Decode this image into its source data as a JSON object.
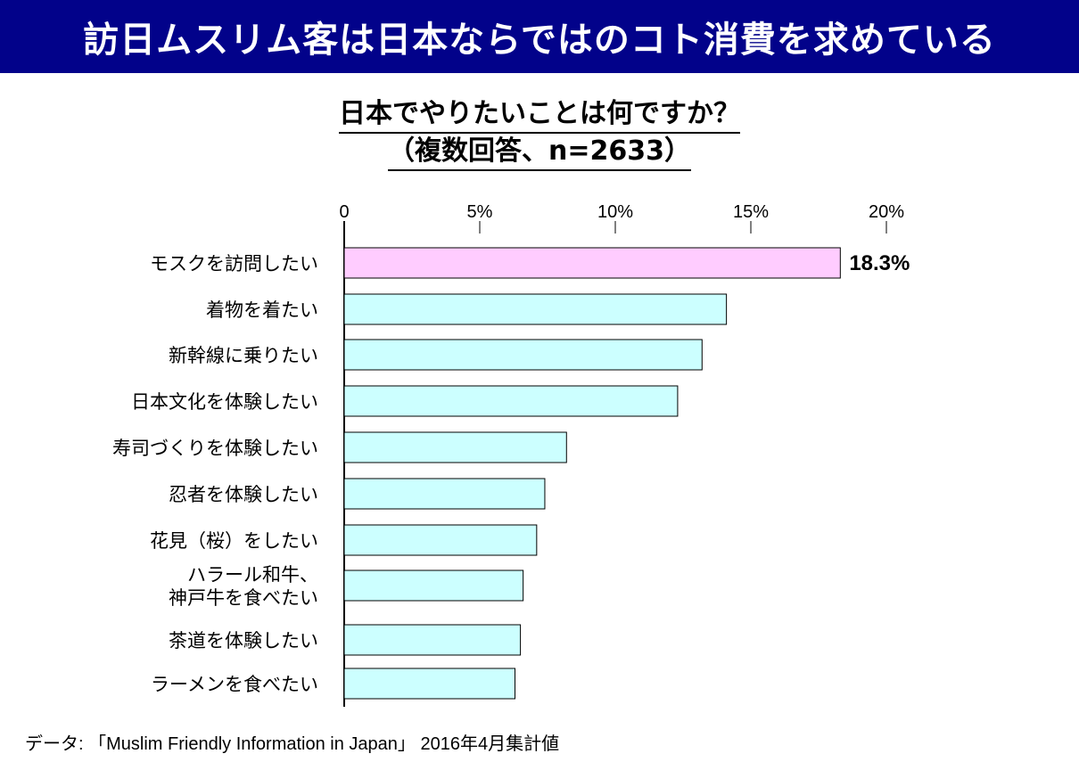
{
  "header": {
    "title": "訪日ムスリム客は日本ならではのコト消費を求めている"
  },
  "chart_data": {
    "type": "bar",
    "orientation": "horizontal",
    "title": "日本でやりたいことは何ですか？",
    "subtitle": "（複数回答、n=2633）",
    "x_ticks": [
      "0",
      "5%",
      "10%",
      "15%",
      "20%"
    ],
    "xlim": [
      0,
      20
    ],
    "categories": [
      [
        "モスクを訪問したい"
      ],
      [
        "着物を着たい"
      ],
      [
        "新幹線に乗りたい"
      ],
      [
        "日本文化を体験したい"
      ],
      [
        "寿司づくりを体験したい"
      ],
      [
        "忍者を体験したい"
      ],
      [
        "花見（桜）をしたい"
      ],
      [
        "ハラール和牛、",
        "神戸牛を食べたい"
      ],
      [
        "茶道を体験したい"
      ],
      [
        "ラーメンを食べたい"
      ]
    ],
    "values": [
      18.3,
      14.1,
      13.2,
      12.3,
      8.2,
      7.4,
      7.1,
      6.6,
      6.5,
      6.3
    ],
    "data_labels": [
      "18.3%"
    ],
    "colors": {
      "highlight": "#ffccff",
      "bar": "#ccffff",
      "stroke": "#000000"
    },
    "legend": "none",
    "grid": false
  },
  "footer": {
    "source": "データ: 「Muslim Friendly Information in Japan」 2016年4月集計値"
  }
}
